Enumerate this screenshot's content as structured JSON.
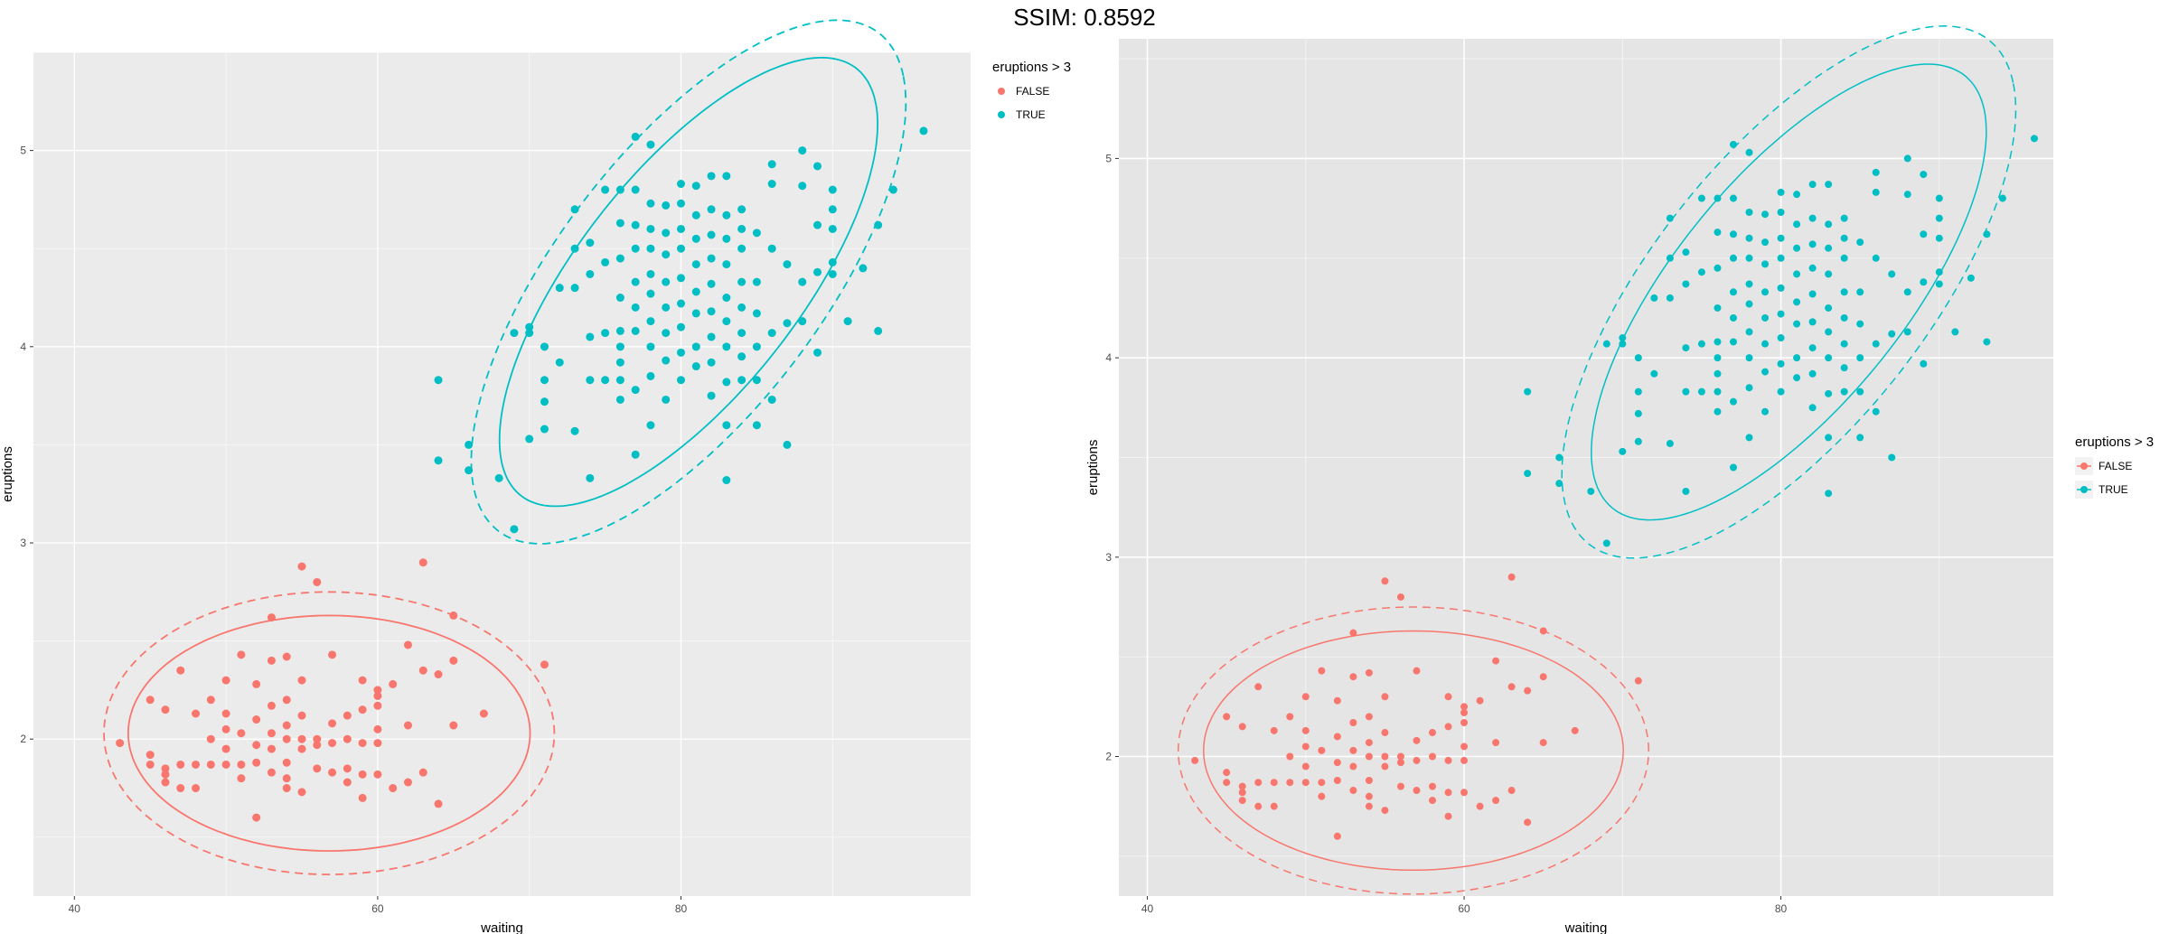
{
  "title": "SSIM: 0.8592",
  "colors": {
    "false": "#F8766D",
    "true": "#00BFC4",
    "panel": "#EBEBEB",
    "panel_right": "#E5E5E5",
    "grid": "#ffffff"
  },
  "chart_data": [
    {
      "type": "scatter",
      "title": "",
      "xlabel": "waiting",
      "ylabel": "eruptions",
      "xlim": [
        37.3,
        99.1
      ],
      "ylim": [
        1.2,
        5.5
      ],
      "xticks": [
        40,
        60,
        80
      ],
      "yticks": [
        2,
        3,
        4,
        5
      ],
      "legend": {
        "title": "eruptions > 3",
        "labels": [
          "FALSE",
          "TRUE"
        ],
        "placement": "top-right"
      },
      "series": [
        {
          "name": "FALSE",
          "points": [
            [
              43,
              1.98
            ],
            [
              45,
              1.92
            ],
            [
              45,
              1.87
            ],
            [
              45,
              2.2
            ],
            [
              46,
              1.85
            ],
            [
              46,
              1.82
            ],
            [
              46,
              1.78
            ],
            [
              46,
              2.15
            ],
            [
              47,
              1.75
            ],
            [
              47,
              1.87
            ],
            [
              47,
              2.35
            ],
            [
              48,
              1.75
            ],
            [
              48,
              1.87
            ],
            [
              48,
              2.13
            ],
            [
              49,
              1.87
            ],
            [
              49,
              2.0
            ],
            [
              49,
              2.2
            ],
            [
              50,
              1.87
            ],
            [
              50,
              1.95
            ],
            [
              50,
              2.05
            ],
            [
              50,
              2.13
            ],
            [
              50,
              2.3
            ],
            [
              51,
              1.8
            ],
            [
              51,
              1.87
            ],
            [
              51,
              2.03
            ],
            [
              51,
              2.43
            ],
            [
              52,
              1.88
            ],
            [
              52,
              1.97
            ],
            [
              52,
              2.1
            ],
            [
              52,
              1.6
            ],
            [
              52,
              2.28
            ],
            [
              53,
              1.83
            ],
            [
              53,
              1.95
            ],
            [
              53,
              2.03
            ],
            [
              53,
              2.17
            ],
            [
              53,
              2.4
            ],
            [
              53,
              2.62
            ],
            [
              54,
              1.75
            ],
            [
              54,
              1.8
            ],
            [
              54,
              1.88
            ],
            [
              54,
              2.0
            ],
            [
              54,
              2.07
            ],
            [
              54,
              2.2
            ],
            [
              54,
              2.42
            ],
            [
              55,
              1.73
            ],
            [
              55,
              1.95
            ],
            [
              55,
              2.0
            ],
            [
              55,
              2.12
            ],
            [
              55,
              2.3
            ],
            [
              55,
              2.88
            ],
            [
              56,
              1.85
            ],
            [
              56,
              1.97
            ],
            [
              56,
              2.0
            ],
            [
              56,
              2.8
            ],
            [
              57,
              1.83
            ],
            [
              57,
              1.98
            ],
            [
              57,
              2.08
            ],
            [
              57,
              2.43
            ],
            [
              58,
              1.78
            ],
            [
              58,
              1.85
            ],
            [
              58,
              2.0
            ],
            [
              58,
              2.12
            ],
            [
              59,
              1.7
            ],
            [
              59,
              1.82
            ],
            [
              59,
              1.98
            ],
            [
              59,
              2.15
            ],
            [
              59,
              2.3
            ],
            [
              60,
              1.82
            ],
            [
              60,
              1.98
            ],
            [
              60,
              2.05
            ],
            [
              60,
              2.17
            ],
            [
              60,
              2.22
            ],
            [
              60,
              2.25
            ],
            [
              61,
              1.75
            ],
            [
              61,
              2.28
            ],
            [
              62,
              1.78
            ],
            [
              62,
              2.07
            ],
            [
              62,
              2.48
            ],
            [
              63,
              1.83
            ],
            [
              63,
              2.35
            ],
            [
              63,
              2.9
            ],
            [
              64,
              1.67
            ],
            [
              64,
              2.33
            ],
            [
              65,
              2.07
            ],
            [
              65,
              2.4
            ],
            [
              65,
              2.63
            ],
            [
              67,
              2.13
            ],
            [
              71,
              2.38
            ]
          ]
        },
        {
          "name": "TRUE",
          "points": [
            [
              64,
              3.83
            ],
            [
              64,
              3.42
            ],
            [
              66,
              3.5
            ],
            [
              66,
              3.37
            ],
            [
              68,
              3.33
            ],
            [
              69,
              3.07
            ],
            [
              69,
              4.07
            ],
            [
              70,
              3.53
            ],
            [
              70,
              4.07
            ],
            [
              70,
              4.1
            ],
            [
              71,
              3.58
            ],
            [
              71,
              3.72
            ],
            [
              71,
              3.83
            ],
            [
              71,
              4.0
            ],
            [
              72,
              3.92
            ],
            [
              72,
              4.3
            ],
            [
              73,
              3.57
            ],
            [
              73,
              4.3
            ],
            [
              73,
              4.5
            ],
            [
              73,
              4.7
            ],
            [
              74,
              3.33
            ],
            [
              74,
              3.83
            ],
            [
              74,
              4.05
            ],
            [
              74,
              4.37
            ],
            [
              74,
              4.53
            ],
            [
              75,
              3.83
            ],
            [
              75,
              4.07
            ],
            [
              75,
              4.43
            ],
            [
              75,
              4.8
            ],
            [
              76,
              3.73
            ],
            [
              76,
              3.83
            ],
            [
              76,
              3.92
            ],
            [
              76,
              4.0
            ],
            [
              76,
              4.08
            ],
            [
              76,
              4.25
            ],
            [
              76,
              4.45
            ],
            [
              76,
              4.63
            ],
            [
              76,
              4.8
            ],
            [
              77,
              3.45
            ],
            [
              77,
              3.78
            ],
            [
              77,
              4.08
            ],
            [
              77,
              4.2
            ],
            [
              77,
              4.33
            ],
            [
              77,
              4.5
            ],
            [
              77,
              4.62
            ],
            [
              77,
              4.8
            ],
            [
              77,
              5.07
            ],
            [
              78,
              3.6
            ],
            [
              78,
              3.85
            ],
            [
              78,
              4.0
            ],
            [
              78,
              4.13
            ],
            [
              78,
              4.27
            ],
            [
              78,
              4.37
            ],
            [
              78,
              4.5
            ],
            [
              78,
              4.6
            ],
            [
              78,
              4.73
            ],
            [
              78,
              5.03
            ],
            [
              79,
              3.73
            ],
            [
              79,
              3.93
            ],
            [
              79,
              4.07
            ],
            [
              79,
              4.2
            ],
            [
              79,
              4.33
            ],
            [
              79,
              4.47
            ],
            [
              79,
              4.58
            ],
            [
              79,
              4.72
            ],
            [
              80,
              3.83
            ],
            [
              80,
              3.97
            ],
            [
              80,
              4.1
            ],
            [
              80,
              4.22
            ],
            [
              80,
              4.35
            ],
            [
              80,
              4.5
            ],
            [
              80,
              4.6
            ],
            [
              80,
              4.73
            ],
            [
              80,
              4.83
            ],
            [
              81,
              3.9
            ],
            [
              81,
              4.0
            ],
            [
              81,
              4.17
            ],
            [
              81,
              4.28
            ],
            [
              81,
              4.42
            ],
            [
              81,
              4.55
            ],
            [
              81,
              4.67
            ],
            [
              81,
              4.82
            ],
            [
              82,
              3.75
            ],
            [
              82,
              3.92
            ],
            [
              82,
              4.05
            ],
            [
              82,
              4.18
            ],
            [
              82,
              4.32
            ],
            [
              82,
              4.45
            ],
            [
              82,
              4.57
            ],
            [
              82,
              4.7
            ],
            [
              82,
              4.87
            ],
            [
              83,
              3.32
            ],
            [
              83,
              3.6
            ],
            [
              83,
              3.82
            ],
            [
              83,
              4.0
            ],
            [
              83,
              4.13
            ],
            [
              83,
              4.25
            ],
            [
              83,
              4.42
            ],
            [
              83,
              4.55
            ],
            [
              83,
              4.67
            ],
            [
              83,
              4.87
            ],
            [
              84,
              3.83
            ],
            [
              84,
              3.95
            ],
            [
              84,
              4.07
            ],
            [
              84,
              4.2
            ],
            [
              84,
              4.33
            ],
            [
              84,
              4.5
            ],
            [
              84,
              4.6
            ],
            [
              84,
              4.7
            ],
            [
              85,
              3.6
            ],
            [
              85,
              3.83
            ],
            [
              85,
              4.0
            ],
            [
              85,
              4.17
            ],
            [
              85,
              4.33
            ],
            [
              85,
              4.58
            ],
            [
              86,
              3.73
            ],
            [
              86,
              4.07
            ],
            [
              86,
              4.5
            ],
            [
              86,
              4.83
            ],
            [
              86,
              4.93
            ],
            [
              87,
              3.5
            ],
            [
              87,
              4.12
            ],
            [
              87,
              4.42
            ],
            [
              88,
              4.13
            ],
            [
              88,
              4.33
            ],
            [
              88,
              4.82
            ],
            [
              88,
              5.0
            ],
            [
              89,
              3.97
            ],
            [
              89,
              4.38
            ],
            [
              89,
              4.62
            ],
            [
              89,
              4.92
            ],
            [
              90,
              4.37
            ],
            [
              90,
              4.43
            ],
            [
              90,
              4.6
            ],
            [
              90,
              4.7
            ],
            [
              90,
              4.8
            ],
            [
              91,
              4.13
            ],
            [
              92,
              4.4
            ],
            [
              93,
              4.08
            ],
            [
              93,
              4.62
            ],
            [
              94,
              4.8
            ],
            [
              96,
              5.1
            ]
          ]
        }
      ],
      "ellipses": [
        {
          "group": "FALSE",
          "level": "0.95",
          "style": "solid",
          "center": [
            56.8,
            2.03
          ],
          "semi_axes": [
            13.25,
            0.6
          ],
          "rotation_deg": 0
        },
        {
          "group": "FALSE",
          "level": "0.99",
          "style": "dashed",
          "center": [
            56.8,
            2.03
          ],
          "semi_axes": [
            14.85,
            0.72
          ],
          "rotation_deg": 0
        },
        {
          "group": "TRUE",
          "level": "0.95",
          "style": "solid",
          "center": [
            80.5,
            4.33
          ],
          "semi_axes": [
            13.5,
            0.75
          ],
          "rotation_deg": 24
        },
        {
          "group": "TRUE",
          "level": "0.99",
          "style": "dashed",
          "center": [
            80.5,
            4.33
          ],
          "semi_axes": [
            15.5,
            0.9
          ],
          "rotation_deg": 24
        }
      ]
    },
    {
      "type": "scatter",
      "title": "",
      "xlabel": "waiting",
      "ylabel": "eruptions",
      "xlim": [
        38.2,
        97.2
      ],
      "ylim": [
        1.3,
        5.6
      ],
      "xticks": [
        40,
        60,
        80
      ],
      "yticks": [
        2,
        3,
        4,
        5
      ],
      "legend": {
        "title": "eruptions > 3",
        "labels": [
          "FALSE",
          "TRUE"
        ],
        "placement": "right"
      },
      "series_ref": "same as chart 1"
    }
  ]
}
